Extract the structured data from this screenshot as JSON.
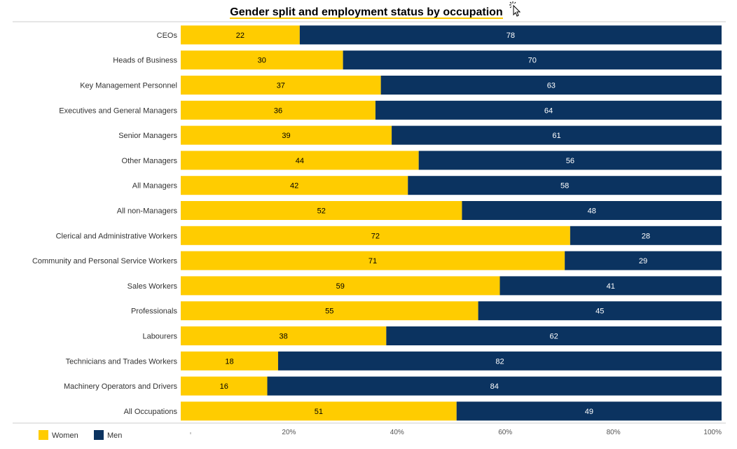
{
  "chart_data": {
    "type": "bar",
    "orientation": "horizontal",
    "stacked": true,
    "normalized": true,
    "title": "Gender split and employment status by occupation",
    "categories": [
      "CEOs",
      "Heads of Business",
      "Key Management Personnel",
      "Executives and General Managers",
      "Senior Managers",
      "Other Managers",
      "All Managers",
      "All non-Managers",
      "Clerical and Administrative Workers",
      "Community and Personal Service Workers",
      "Sales Workers",
      "Professionals",
      "Labourers",
      "Technicians and Trades Workers",
      "Machinery Operators and Drivers",
      "All Occupations"
    ],
    "series": [
      {
        "name": "Women",
        "color": "#FFCC00",
        "label_color": "#000000",
        "values": [
          22,
          30,
          37,
          36,
          39,
          44,
          42,
          52,
          72,
          71,
          59,
          55,
          38,
          18,
          16,
          51
        ]
      },
      {
        "name": "Men",
        "color": "#0B3360",
        "label_color": "#FFFFFF",
        "values": [
          78,
          70,
          63,
          64,
          61,
          56,
          58,
          48,
          28,
          29,
          41,
          45,
          62,
          82,
          84,
          49
        ]
      }
    ],
    "xlim": [
      0,
      100
    ],
    "xticks": [
      0,
      20,
      40,
      60,
      80,
      100
    ],
    "xtick_labels": [
      "",
      "20%",
      "40%",
      "60%",
      "80%",
      "100%"
    ],
    "legend": {
      "position": "bottom-left",
      "entries": [
        "Women",
        "Men"
      ]
    },
    "title_underline_color": "#FFCC00"
  }
}
